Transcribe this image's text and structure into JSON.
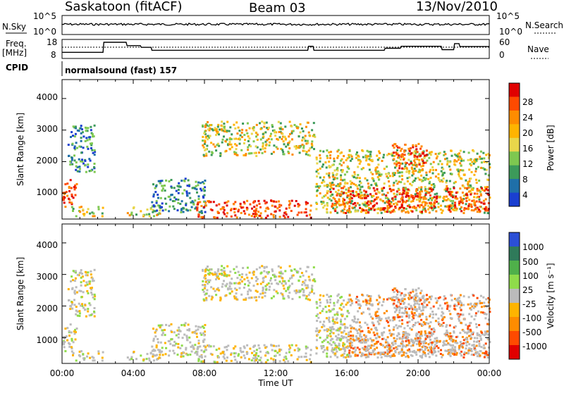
{
  "header": {
    "station": "Saskatoon (fitACF)",
    "beam": "Beam 03",
    "date": "13/Nov/2010"
  },
  "top_panels": {
    "nsky_label": "N.Sky",
    "nsky_top": "10^5",
    "nsky_bottom": "10^0",
    "nsearch_label": "N.Search",
    "freq_label": "Freq.",
    "freq_unit": "[MHz]",
    "freq_ticks": [
      "18",
      "8"
    ],
    "nave_ticks": [
      "60",
      "0"
    ],
    "nave_label": "Nave",
    "cpid_label": "CPID",
    "cpid_value": "normalsound (fast) 157"
  },
  "axes": {
    "ylabel": "Slant Range [km]",
    "xlabel": "Time UT",
    "yticks": [
      "1000",
      "2000",
      "3000",
      "4000"
    ],
    "xticks": [
      "00:00",
      "04:00",
      "08:00",
      "12:00",
      "16:00",
      "20:00",
      "00:00"
    ]
  },
  "power_colorbar": {
    "label": "Power [dB]",
    "ticks": [
      "28",
      "24",
      "20",
      "16",
      "12",
      "8",
      "4"
    ],
    "colors": [
      "#e00000",
      "#ff4a00",
      "#ff8c00",
      "#ffb400",
      "#e8d64a",
      "#7ec850",
      "#3c9a5a",
      "#1f6fa8",
      "#1a3fd0"
    ]
  },
  "velocity_colorbar": {
    "label": "Velocity [m s⁻¹]",
    "ticks": [
      "1000",
      "500",
      "100",
      "25",
      "-25",
      "-100",
      "-500",
      "-1000"
    ],
    "colors": [
      "#2b4fd6",
      "#2f7a5a",
      "#4fb04a",
      "#8fdc4a",
      "#bbbbbb",
      "#ffb400",
      "#ff8c00",
      "#ff4a00",
      "#e00000"
    ]
  },
  "chart_data": {
    "type": "heatmap",
    "x_range_hours": [
      0,
      24
    ],
    "y_range_km": [
      180,
      4600
    ],
    "freq_mhz": [
      [
        0,
        10.5
      ],
      [
        2.3,
        10.5
      ],
      [
        2.35,
        18
      ],
      [
        3.6,
        18
      ],
      [
        3.65,
        15.5
      ],
      [
        4.4,
        15.5
      ],
      [
        4.45,
        14.2
      ],
      [
        5.0,
        14.2
      ],
      [
        5.05,
        12.0
      ],
      [
        13.8,
        12.0
      ],
      [
        13.85,
        15.0
      ],
      [
        14.1,
        15.0
      ],
      [
        14.15,
        12.0
      ],
      [
        18.1,
        12.0
      ],
      [
        18.15,
        13.5
      ],
      [
        19.0,
        13.5
      ],
      [
        19.05,
        15.0
      ],
      [
        21.3,
        15.0
      ],
      [
        21.35,
        12.5
      ],
      [
        22.0,
        12.5
      ],
      [
        22.05,
        17.0
      ],
      [
        22.3,
        17.0
      ],
      [
        22.35,
        14.8
      ],
      [
        24,
        14.8
      ]
    ],
    "nave_dotted": 33,
    "power_echoes": [
      {
        "t0": 0.0,
        "t1": 0.8,
        "r0": 600,
        "r1": 1500,
        "band": "high"
      },
      {
        "t0": 0.5,
        "t1": 2.3,
        "r0": 300,
        "r1": 600,
        "band": "mid"
      },
      {
        "t0": 0.3,
        "t1": 1.8,
        "r0": 1700,
        "r1": 3200,
        "band": "low"
      },
      {
        "t0": 3.6,
        "t1": 5.5,
        "r0": 300,
        "r1": 600,
        "band": "mid"
      },
      {
        "t0": 5.0,
        "t1": 8.0,
        "r0": 400,
        "r1": 1500,
        "band": "low"
      },
      {
        "t0": 7.5,
        "t1": 14.0,
        "r0": 250,
        "r1": 800,
        "band": "high"
      },
      {
        "t0": 7.8,
        "t1": 14.2,
        "r0": 2200,
        "r1": 3300,
        "band": "mid"
      },
      {
        "t0": 14.2,
        "t1": 24.0,
        "r0": 400,
        "r1": 2400,
        "band": "mid"
      },
      {
        "t0": 15.0,
        "t1": 21.0,
        "r0": 400,
        "r1": 1200,
        "band": "high"
      },
      {
        "t0": 18.5,
        "t1": 20.5,
        "r0": 1800,
        "r1": 2600,
        "band": "high"
      },
      {
        "t0": 21.5,
        "t1": 24.0,
        "r0": 400,
        "r1": 1200,
        "band": "high"
      }
    ]
  }
}
